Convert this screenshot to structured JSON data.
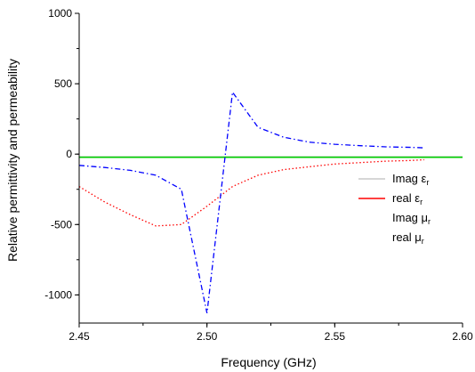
{
  "chart_data": {
    "type": "line",
    "xlabel": "Frequency (GHz)",
    "ylabel": "Relative permittivity and permeability",
    "xlim": [
      2.45,
      2.6
    ],
    "ylim": [
      -1200,
      1000
    ],
    "x_ticks": [
      2.45,
      2.5,
      2.55,
      2.6
    ],
    "x_tick_labels": [
      "2.45",
      "2.50",
      "2.55",
      "2.60"
    ],
    "y_ticks": [
      -1000,
      -500,
      0,
      500,
      1000
    ],
    "y_tick_labels": [
      "-1000",
      "-500",
      "0",
      "500",
      "1000"
    ],
    "grid": false,
    "legend_position": "right",
    "series": [
      {
        "name": "Imag εr",
        "name_main": "Imag ε",
        "name_sub": "r",
        "color": "#c8c8c8",
        "dash": "solid",
        "x": [
          2.45,
          2.6
        ],
        "y": [
          -20,
          -20
        ]
      },
      {
        "name": "real εr",
        "name_main": "real ε",
        "name_sub": "r",
        "color": "#ff0000",
        "dash": "dotted",
        "x": [
          2.45,
          2.46,
          2.47,
          2.48,
          2.49,
          2.5,
          2.51,
          2.52,
          2.53,
          2.54,
          2.55,
          2.56,
          2.57,
          2.58,
          2.585
        ],
        "y": [
          -230,
          -340,
          -430,
          -510,
          -500,
          -370,
          -230,
          -150,
          -110,
          -90,
          -70,
          -60,
          -50,
          -45,
          -40
        ]
      },
      {
        "name": "Imag μr",
        "name_main": "Imag μ",
        "name_sub": "r",
        "color": "#00cc00",
        "dash": "solid",
        "x": [
          2.45,
          2.6
        ],
        "y": [
          -22,
          -22
        ]
      },
      {
        "name": "real μr",
        "name_main": "real μ",
        "name_sub": "r",
        "color": "#0000ff",
        "dash": "dashdot",
        "x": [
          2.45,
          2.46,
          2.47,
          2.48,
          2.49,
          2.5,
          2.51,
          2.52,
          2.53,
          2.54,
          2.55,
          2.56,
          2.57,
          2.58,
          2.585
        ],
        "y": [
          -80,
          -95,
          -115,
          -150,
          -250,
          -1130,
          440,
          190,
          120,
          85,
          70,
          60,
          52,
          48,
          45
        ]
      }
    ]
  }
}
